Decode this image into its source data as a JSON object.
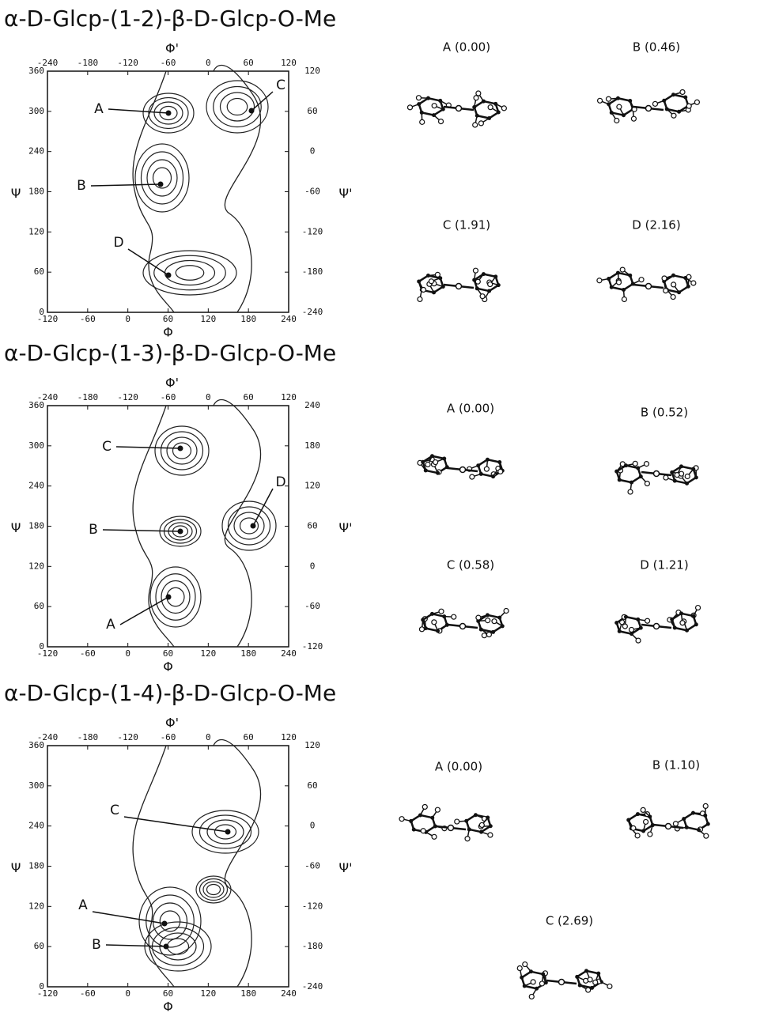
{
  "panels": [
    {
      "title": "α-D-Glcp-(1-2)-β-D-Glcp-O-Me",
      "x_label": "Φ",
      "x2_label": "Φ'",
      "y_label": "Ψ",
      "y2_label": "Ψ'",
      "xticks": [
        -120,
        -60,
        0,
        60,
        120,
        180,
        240
      ],
      "x2ticks": [
        -240,
        -180,
        -120,
        -60,
        0,
        60,
        120
      ],
      "yticks": [
        0,
        60,
        120,
        180,
        240,
        300,
        360
      ],
      "y2ticks": [
        -240,
        -180,
        -120,
        -60,
        0,
        60,
        120
      ],
      "minima": [
        "A",
        "B",
        "C",
        "D"
      ],
      "conformers": [
        "A (0.00)",
        "B (0.46)",
        "C (1.91)",
        "D (2.16)"
      ]
    },
    {
      "title": "α-D-Glcp-(1-3)-β-D-Glcp-O-Me",
      "x_label": "Φ",
      "x2_label": "Φ'",
      "y_label": "Ψ",
      "y2_label": "Ψ'",
      "xticks": [
        -120,
        -60,
        0,
        60,
        120,
        180,
        240
      ],
      "x2ticks": [
        -240,
        -180,
        -120,
        -60,
        0,
        60,
        120
      ],
      "yticks": [
        0,
        60,
        120,
        180,
        240,
        300,
        360
      ],
      "y2ticks": [
        -120,
        -60,
        0,
        60,
        120,
        180,
        240
      ],
      "minima": [
        "C",
        "B",
        "D",
        "A"
      ],
      "conformers": [
        "A (0.00)",
        "B (0.52)",
        "C (0.58)",
        "D (1.21)"
      ]
    },
    {
      "title": "α-D-Glcp-(1-4)-β-D-Glcp-O-Me",
      "x_label": "Φ",
      "x2_label": "Φ'",
      "y_label": "Ψ",
      "y2_label": "Ψ'",
      "xticks": [
        -120,
        -60,
        0,
        60,
        120,
        180,
        240
      ],
      "x2ticks": [
        -240,
        -180,
        -120,
        -60,
        0,
        60,
        120
      ],
      "yticks": [
        0,
        60,
        120,
        180,
        240,
        300,
        360
      ],
      "y2ticks": [
        -240,
        -180,
        -120,
        -60,
        0,
        60,
        120
      ],
      "minima": [
        "C",
        "A",
        "B"
      ],
      "conformers": [
        "A (0.00)",
        "B (1.10)",
        "C (2.69)"
      ]
    }
  ]
}
